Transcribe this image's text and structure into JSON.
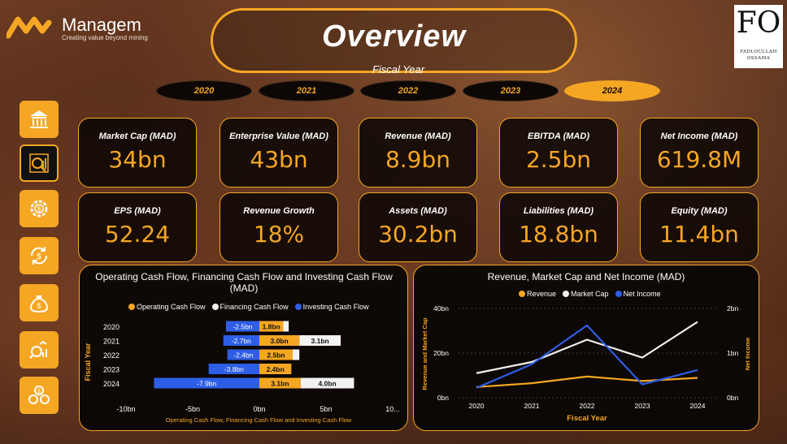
{
  "brand": {
    "name": "Managem",
    "tagline": "Creating value beyond mining"
  },
  "title": "Overview",
  "slicer": {
    "label": "Fiscal Year",
    "years": [
      "2020",
      "2021",
      "2022",
      "2023",
      "2024"
    ],
    "selected": "2024"
  },
  "signature": {
    "monogram": "FO",
    "line1": "FADLOULLAH",
    "line2": "OSSAMA"
  },
  "nav": [
    {
      "icon": "bank-icon",
      "active": false
    },
    {
      "icon": "analytics-icon",
      "active": true
    },
    {
      "icon": "gear-dollar-icon",
      "active": false
    },
    {
      "icon": "refresh-dollar-icon",
      "active": false
    },
    {
      "icon": "money-bag-icon",
      "active": false
    },
    {
      "icon": "chart-search-icon",
      "active": false
    },
    {
      "icon": "coins-icon",
      "active": false
    }
  ],
  "kpis": [
    {
      "label": "Market Cap (MAD)",
      "value": "34bn"
    },
    {
      "label": "Enterprise Value (MAD)",
      "value": "43bn"
    },
    {
      "label": "Revenue (MAD)",
      "value": "8.9bn"
    },
    {
      "label": "EBITDA (MAD)",
      "value": "2.5bn"
    },
    {
      "label": "Net Income (MAD)",
      "value": "619.8M"
    },
    {
      "label": "EPS (MAD)",
      "value": "52.24"
    },
    {
      "label": "Revenue Growth",
      "value": "18%"
    },
    {
      "label": "Assets (MAD)",
      "value": "30.2bn"
    },
    {
      "label": "Liabilities (MAD)",
      "value": "18.8bn"
    },
    {
      "label": "Equity (MAD)",
      "value": "11.4bn"
    }
  ],
  "colors": {
    "accent": "#f5a623",
    "blue": "#2f5ee6",
    "white": "#f2f2f2"
  },
  "chart_data": [
    {
      "type": "bar",
      "title": "Operating Cash Flow, Financing Cash Flow and Investing Cash Flow (MAD)",
      "xlabel": "Operating Cash Flow, Financing Cash Flow and Investing Cash Flow",
      "ylabel": "Fiscal Year",
      "categories": [
        "2020",
        "2021",
        "2022",
        "2023",
        "2024"
      ],
      "x_ticks": [
        "-10bn",
        "-5bn",
        "0bn",
        "5bn",
        "10..."
      ],
      "xlim": [
        -10,
        10
      ],
      "series": [
        {
          "name": "Operating Cash Flow",
          "color": "#f5a623",
          "values": [
            1.8,
            3.0,
            2.5,
            2.4,
            3.1
          ],
          "labels": [
            "1.8bn",
            "3.0bn",
            "2.5bn",
            "2.4bn",
            "3.1bn"
          ]
        },
        {
          "name": "Financing Cash Flow",
          "color": "#f2f2f2",
          "values": [
            0.4,
            3.1,
            0.5,
            0.0,
            4.0
          ],
          "labels": [
            "",
            "3.1bn",
            "",
            "",
            "4.0bn"
          ]
        },
        {
          "name": "Investing Cash Flow",
          "color": "#2f5ee6",
          "values": [
            -2.5,
            -2.7,
            -2.4,
            -3.8,
            -7.9
          ],
          "labels": [
            "-2.5bn",
            "-2.7bn",
            "-2.4bn",
            "-3.8bn",
            "-7.9bn"
          ]
        }
      ]
    },
    {
      "type": "line",
      "title": "Revenue, Market Cap and Net Income (MAD)",
      "xlabel": "Fiscal Year",
      "ylabel": "Revenue and Market Cap",
      "y2label": "Net Income",
      "x": [
        "2020",
        "2021",
        "2022",
        "2023",
        "2024"
      ],
      "ylim": [
        0,
        40
      ],
      "y_ticks": [
        "0bn",
        "20bn",
        "40bn"
      ],
      "y2lim": [
        0,
        2
      ],
      "y2_ticks": [
        "0bn",
        "1bn",
        "2bn"
      ],
      "series": [
        {
          "name": "Revenue",
          "color": "#f5a623",
          "axis": "left",
          "values": [
            4.8,
            6.5,
            9.5,
            7.5,
            8.9
          ]
        },
        {
          "name": "Market Cap",
          "color": "#f2f2f2",
          "axis": "left",
          "values": [
            11,
            16,
            26,
            18,
            34
          ]
        },
        {
          "name": "Net Income",
          "color": "#2f5ee6",
          "axis": "right",
          "values": [
            0.22,
            0.75,
            1.62,
            0.3,
            0.62
          ]
        }
      ]
    }
  ]
}
